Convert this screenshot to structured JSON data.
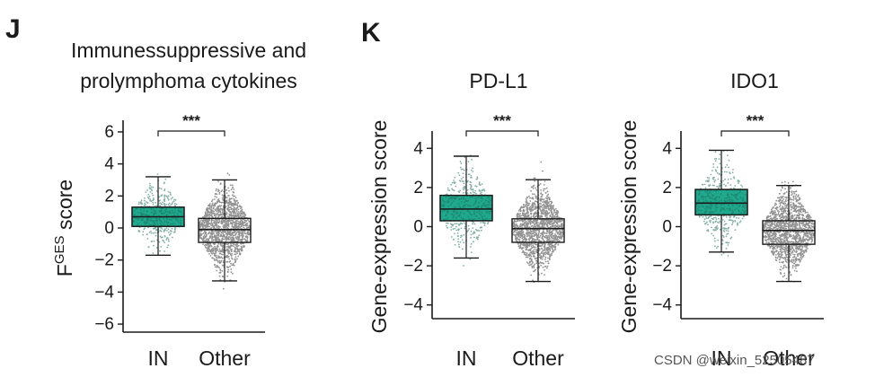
{
  "colors": {
    "in_box": "#1fa88c",
    "in_dots": "#1f6e5e",
    "other_dots": "#3a3a3a",
    "axis": "#1a1a1a"
  },
  "panels": {
    "j_letter": "J",
    "k_letter": "K"
  },
  "watermark": "CSDN @weixin_52505487",
  "chart_data": [
    {
      "id": "J",
      "type": "boxplot",
      "title_lines": [
        "Immunessuppressive and",
        "prolymphoma cytokines"
      ],
      "ylabel_main": "F",
      "ylabel_sup": "GES",
      "ylabel_rest": " score",
      "ylim": [
        -6.5,
        6.5
      ],
      "yticks": [
        6,
        4,
        2,
        0,
        -2,
        -4,
        -6
      ],
      "categories": [
        "IN",
        "Other"
      ],
      "significance": "***",
      "series": [
        {
          "name": "IN",
          "q1": 0.1,
          "median": 0.7,
          "q3": 1.3,
          "whisker_low": -1.7,
          "whisker_high": 3.2,
          "color_key": "in_box",
          "filled": true
        },
        {
          "name": "Other",
          "q1": -0.9,
          "median": -0.1,
          "q3": 0.6,
          "whisker_low": -3.3,
          "whisker_high": 3.0,
          "color_key": "other_dots",
          "filled": false
        }
      ]
    },
    {
      "id": "K1",
      "type": "boxplot",
      "title_lines": [
        "PD-L1"
      ],
      "ylabel_main": "Gene-expression score",
      "ylabel_sup": "",
      "ylabel_rest": "",
      "ylim": [
        -4.7,
        4.7
      ],
      "yticks": [
        4,
        2,
        0,
        -2,
        -4
      ],
      "categories": [
        "IN",
        "Other"
      ],
      "significance": "***",
      "series": [
        {
          "name": "IN",
          "q1": 0.3,
          "median": 0.9,
          "q3": 1.6,
          "whisker_low": -1.6,
          "whisker_high": 3.6,
          "color_key": "in_box",
          "filled": true
        },
        {
          "name": "Other",
          "q1": -0.8,
          "median": -0.1,
          "q3": 0.4,
          "whisker_low": -2.8,
          "whisker_high": 2.4,
          "color_key": "other_dots",
          "filled": false
        }
      ]
    },
    {
      "id": "K2",
      "type": "boxplot",
      "title_lines": [
        "IDO1"
      ],
      "ylabel_main": "Gene-expression score",
      "ylabel_sup": "",
      "ylabel_rest": "",
      "ylim": [
        -4.7,
        4.7
      ],
      "yticks": [
        4,
        2,
        0,
        -2,
        -4
      ],
      "categories": [
        "IN",
        "Other"
      ],
      "significance": "***",
      "series": [
        {
          "name": "IN",
          "q1": 0.6,
          "median": 1.2,
          "q3": 1.9,
          "whisker_low": -1.3,
          "whisker_high": 3.9,
          "color_key": "in_box",
          "filled": true
        },
        {
          "name": "Other",
          "q1": -0.9,
          "median": -0.2,
          "q3": 0.3,
          "whisker_low": -2.8,
          "whisker_high": 2.1,
          "color_key": "other_dots",
          "filled": false
        }
      ]
    }
  ]
}
